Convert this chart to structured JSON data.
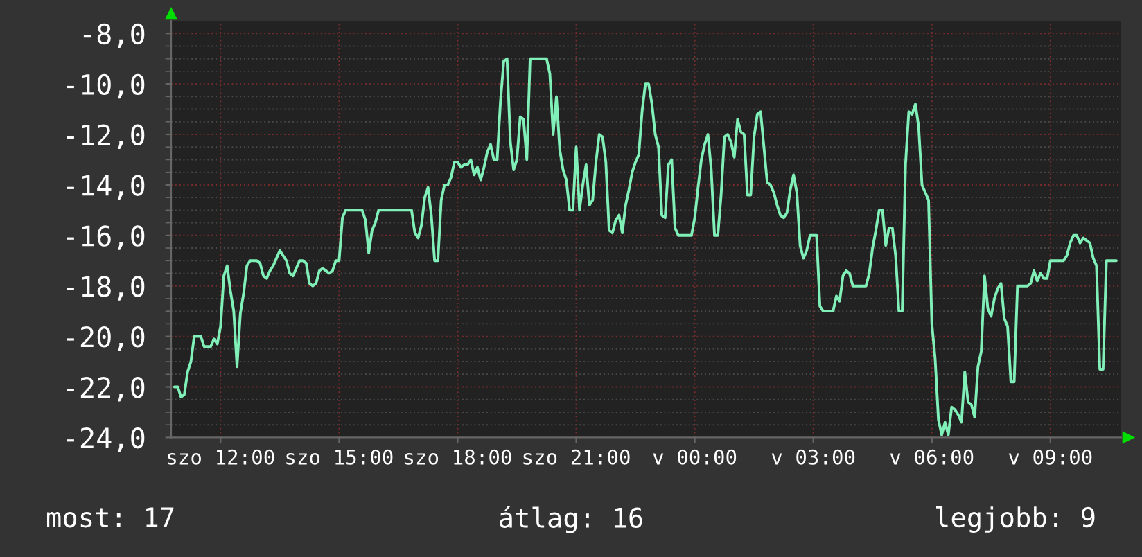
{
  "chart_data": {
    "type": "line",
    "categories": [
      null,
      null,
      null,
      null,
      null,
      null,
      null,
      null,
      null,
      null,
      null,
      null,
      null,
      null,
      "szo 12:00",
      null,
      null,
      null,
      null,
      null,
      null,
      null,
      null,
      null,
      null,
      null,
      null,
      null,
      null,
      null,
      null,
      null,
      null,
      null,
      null,
      null,
      null,
      null,
      null,
      null,
      null,
      null,
      null,
      null,
      null,
      null,
      null,
      null,
      null,
      null,
      "szo 15:00",
      null,
      null,
      null,
      null,
      null,
      null,
      null,
      null,
      null,
      null,
      null,
      null,
      null,
      null,
      null,
      null,
      null,
      null,
      null,
      null,
      null,
      null,
      null,
      null,
      null,
      null,
      null,
      null,
      null,
      null,
      null,
      null,
      null,
      null,
      null,
      "szo 18:00",
      null,
      null,
      null,
      null,
      null,
      null,
      null,
      null,
      null,
      null,
      null,
      null,
      null,
      null,
      null,
      null,
      null,
      null,
      null,
      null,
      null,
      null,
      null,
      null,
      null,
      null,
      null,
      null,
      null,
      null,
      null,
      null,
      null,
      null,
      null,
      "szo 21:00",
      null,
      null,
      null,
      null,
      null,
      null,
      null,
      null,
      null,
      null,
      null,
      null,
      null,
      null,
      null,
      null,
      null,
      null,
      null,
      null,
      null,
      null,
      null,
      null,
      null,
      null,
      null,
      null,
      null,
      null,
      null,
      null,
      null,
      null,
      null,
      "v 00:00",
      null,
      null,
      null,
      null,
      null,
      null,
      null,
      null,
      null,
      null,
      null,
      null,
      null,
      null,
      null,
      null,
      null,
      null,
      null,
      null,
      null,
      null,
      null,
      null,
      null,
      null,
      null,
      null,
      null,
      null,
      null,
      null,
      null,
      null,
      null,
      "v 03:00",
      null,
      null,
      null,
      null,
      null,
      null,
      null,
      null,
      null,
      null,
      null,
      null,
      null,
      null,
      null,
      null,
      null,
      null,
      null,
      null,
      null,
      null,
      null,
      null,
      null,
      null,
      null,
      null,
      null,
      null,
      null,
      null,
      null,
      null,
      null,
      "v 06:00",
      null,
      null,
      null,
      null,
      null,
      null,
      null,
      null,
      null,
      null,
      null,
      null,
      null,
      null,
      null,
      null,
      null,
      null,
      null,
      null,
      null,
      null,
      null,
      null,
      null,
      null,
      null,
      null,
      null,
      null,
      null,
      null,
      null,
      null,
      null,
      "v 09:00",
      null,
      null,
      null,
      null,
      null,
      null,
      null,
      null,
      null,
      null,
      null,
      null,
      null,
      null,
      null,
      null,
      null,
      null,
      null,
      null
    ],
    "ylim": [
      -24,
      -7.5
    ],
    "yticks": [
      {
        "value": -24,
        "label": "-24,0"
      },
      {
        "value": -23.5,
        "label": null
      },
      {
        "value": -23,
        "label": null
      },
      {
        "value": -22.5,
        "label": null
      },
      {
        "value": -22,
        "label": "-22,0"
      },
      {
        "value": -21.5,
        "label": null
      },
      {
        "value": -21,
        "label": null
      },
      {
        "value": -20.5,
        "label": null
      },
      {
        "value": -20,
        "label": "-20,0"
      },
      {
        "value": -19.5,
        "label": null
      },
      {
        "value": -19,
        "label": null
      },
      {
        "value": -18.5,
        "label": null
      },
      {
        "value": -18,
        "label": "-18,0"
      },
      {
        "value": -17.5,
        "label": null
      },
      {
        "value": -17,
        "label": null
      },
      {
        "value": -16.5,
        "label": null
      },
      {
        "value": -16,
        "label": "-16,0"
      },
      {
        "value": -15.5,
        "label": null
      },
      {
        "value": -15,
        "label": null
      },
      {
        "value": -14.5,
        "label": null
      },
      {
        "value": -14,
        "label": "-14,0"
      },
      {
        "value": -13.5,
        "label": null
      },
      {
        "value": -13,
        "label": null
      },
      {
        "value": -12.5,
        "label": null
      },
      {
        "value": -12,
        "label": "-12,0"
      },
      {
        "value": -11.5,
        "label": null
      },
      {
        "value": -11,
        "label": null
      },
      {
        "value": -10.5,
        "label": null
      },
      {
        "value": -10,
        "label": "-10,0"
      },
      {
        "value": -9.5,
        "label": null
      },
      {
        "value": -9,
        "label": null
      },
      {
        "value": -8.5,
        "label": null
      },
      {
        "value": -8,
        "label": "-8,0"
      }
    ],
    "grid": true,
    "series": [
      {
        "color": "#80f0b8",
        "values": [
          -22.0,
          -22.0,
          -22.4,
          -22.3,
          -21.4,
          -21.0,
          -20.0,
          -20.0,
          -20.0,
          -20.4,
          -20.4,
          -20.4,
          -20.1,
          -20.3,
          -19.6,
          -17.6,
          -17.2,
          -18.2,
          -19.0,
          -21.2,
          -19.1,
          -18.3,
          -17.2,
          -17.0,
          -17.0,
          -17.0,
          -17.1,
          -17.6,
          -17.7,
          -17.4,
          -17.2,
          -16.9,
          -16.6,
          -16.8,
          -17.0,
          -17.5,
          -17.6,
          -17.3,
          -17.0,
          -17.0,
          -17.1,
          -17.9,
          -18.0,
          -17.9,
          -17.4,
          -17.3,
          -17.4,
          -17.5,
          -17.4,
          -17.0,
          -17.0,
          -15.3,
          -15.0,
          -15.0,
          -15.0,
          -15.0,
          -15.0,
          -15.0,
          -15.4,
          -16.7,
          -15.8,
          -15.5,
          -15.0,
          -15.0,
          -15.0,
          -15.0,
          -15.0,
          -15.0,
          -15.0,
          -15.0,
          -15.0,
          -15.0,
          -15.0,
          -15.9,
          -16.1,
          -15.6,
          -14.5,
          -14.1,
          -15.2,
          -17.0,
          -17.0,
          -14.6,
          -14.0,
          -14.0,
          -13.7,
          -13.1,
          -13.1,
          -13.3,
          -13.2,
          -13.2,
          -13.0,
          -13.6,
          -13.3,
          -13.8,
          -13.3,
          -12.7,
          -12.4,
          -13.0,
          -13.0,
          -10.7,
          -9.1,
          -9.0,
          -12.3,
          -13.4,
          -13.0,
          -11.3,
          -11.4,
          -13.0,
          -9.0,
          -9.0,
          -9.0,
          -9.0,
          -9.0,
          -9.0,
          -9.6,
          -12.0,
          -10.5,
          -12.6,
          -13.4,
          -13.8,
          -15.0,
          -15.0,
          -12.5,
          -15.0,
          -14.0,
          -13.2,
          -14.8,
          -14.6,
          -13.1,
          -12.0,
          -12.1,
          -13.1,
          -15.8,
          -15.9,
          -15.4,
          -15.2,
          -15.9,
          -14.8,
          -14.2,
          -13.5,
          -13.1,
          -12.8,
          -11.1,
          -10.0,
          -10.0,
          -10.8,
          -12.0,
          -12.5,
          -15.2,
          -15.3,
          -13.2,
          -13.0,
          -15.7,
          -16.0,
          -16.0,
          -16.0,
          -16.0,
          -16.0,
          -15.3,
          -14.1,
          -13.0,
          -12.4,
          -12.0,
          -13.4,
          -16.0,
          -16.0,
          -14.4,
          -12.1,
          -12.0,
          -12.3,
          -12.9,
          -11.4,
          -11.9,
          -12.0,
          -14.4,
          -14.4,
          -12.1,
          -11.2,
          -11.1,
          -12.5,
          -13.9,
          -14.0,
          -14.3,
          -14.8,
          -15.2,
          -15.3,
          -15.1,
          -14.2,
          -13.6,
          -14.3,
          -16.4,
          -16.9,
          -16.6,
          -16.0,
          -16.0,
          -16.0,
          -18.8,
          -19.0,
          -19.0,
          -19.0,
          -19.0,
          -18.4,
          -18.6,
          -17.6,
          -17.4,
          -17.5,
          -18.0,
          -18.0,
          -18.0,
          -18.0,
          -18.0,
          -17.5,
          -16.5,
          -15.8,
          -15.0,
          -15.0,
          -16.4,
          -15.7,
          -15.7,
          -16.8,
          -19.0,
          -19.0,
          -13.2,
          -11.1,
          -11.2,
          -10.8,
          -11.7,
          -14.0,
          -14.3,
          -14.6,
          -19.5,
          -20.9,
          -23.3,
          -23.9,
          -23.4,
          -23.9,
          -22.8,
          -22.9,
          -23.1,
          -23.4,
          -21.4,
          -22.6,
          -22.7,
          -23.2,
          -21.2,
          -20.6,
          -17.6,
          -18.9,
          -19.2,
          -18.5,
          -18.1,
          -17.9,
          -19.3,
          -19.6,
          -21.8,
          -21.8,
          -18.0,
          -18.0,
          -18.0,
          -18.0,
          -17.9,
          -17.4,
          -17.8,
          -17.5,
          -17.7,
          -17.7,
          -17.0,
          -17.0,
          -17.0,
          -17.0,
          -17.0,
          -16.8,
          -16.3,
          -16.0,
          -16.0,
          -16.3,
          -16.1,
          -16.2,
          -16.3,
          -16.9,
          -17.2,
          -21.3,
          -21.3,
          -17.0,
          -17.0,
          -17.0,
          -17.0
        ]
      }
    ],
    "annotations": [
      "most: 17",
      "átlag: 16",
      "legjobb: 9"
    ]
  }
}
